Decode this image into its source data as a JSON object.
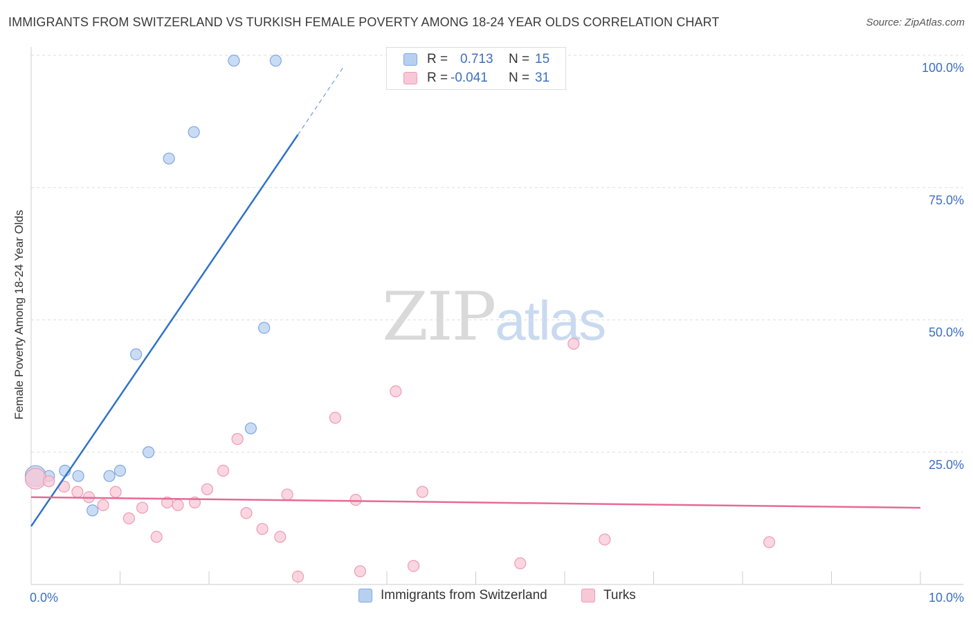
{
  "title": "IMMIGRANTS FROM SWITZERLAND VS TURKISH FEMALE POVERTY AMONG 18-24 YEAR OLDS CORRELATION CHART",
  "source": "Source: ZipAtlas.com",
  "watermark": {
    "zip": "ZIP",
    "atlas": "atlas"
  },
  "legend_top": [
    {
      "r_label": "R =",
      "r_value": "0.713",
      "n_label": "N =",
      "n_value": "15"
    },
    {
      "r_label": "R =",
      "r_value": "-0.041",
      "n_label": "N =",
      "n_value": "31"
    }
  ],
  "colors": {
    "blue_fill": "#b8d0f0",
    "blue_stroke": "#7da7e0",
    "blue_line": "#2f72c8",
    "pink_fill": "#f8c8d6",
    "pink_stroke": "#ee9ab5",
    "pink_line": "#e56a94",
    "grid": "#dddddd",
    "tick_text": "#3a6fc0"
  },
  "chart_data": {
    "type": "scatter",
    "title": "IMMIGRANTS FROM SWITZERLAND VS TURKISH FEMALE POVERTY AMONG 18-24 YEAR OLDS CORRELATION CHART",
    "xlabel": "",
    "ylabel": "Female Poverty Among 18-24 Year Olds",
    "xlim": [
      0,
      10
    ],
    "ylim": [
      0,
      100
    ],
    "x_tick_labels": [
      "0.0%",
      "10.0%"
    ],
    "y_ticks": [
      25,
      50,
      75,
      100
    ],
    "y_tick_labels": [
      "25.0%",
      "50.0%",
      "75.0%",
      "100.0%"
    ],
    "legend_position": "bottom",
    "series": [
      {
        "name": "Immigrants from Switzerland",
        "color": "blue",
        "points": [
          {
            "x": 0.05,
            "y": 20.5,
            "big": true
          },
          {
            "x": 0.2,
            "y": 20.5
          },
          {
            "x": 0.38,
            "y": 21.5
          },
          {
            "x": 0.53,
            "y": 20.5
          },
          {
            "x": 0.69,
            "y": 14.0
          },
          {
            "x": 0.88,
            "y": 20.5
          },
          {
            "x": 1.0,
            "y": 21.5
          },
          {
            "x": 1.18,
            "y": 43.5
          },
          {
            "x": 1.32,
            "y": 25.0
          },
          {
            "x": 1.55,
            "y": 80.5
          },
          {
            "x": 1.83,
            "y": 85.5
          },
          {
            "x": 2.28,
            "y": 99.0
          },
          {
            "x": 2.47,
            "y": 29.5
          },
          {
            "x": 2.62,
            "y": 48.5
          },
          {
            "x": 2.75,
            "y": 99.0
          }
        ],
        "trend": {
          "x1": 0.0,
          "y1": 11.0,
          "x2": 3.0,
          "y2": 85.0,
          "dash_to_x": 3.52,
          "dash_to_y": 98.0
        }
      },
      {
        "name": "Turks",
        "color": "pink",
        "points": [
          {
            "x": 0.05,
            "y": 20.0,
            "big": true
          },
          {
            "x": 0.2,
            "y": 19.5
          },
          {
            "x": 0.37,
            "y": 18.5
          },
          {
            "x": 0.52,
            "y": 17.5
          },
          {
            "x": 0.65,
            "y": 16.5
          },
          {
            "x": 0.81,
            "y": 15.0
          },
          {
            "x": 0.95,
            "y": 17.5
          },
          {
            "x": 1.1,
            "y": 12.5
          },
          {
            "x": 1.25,
            "y": 14.5
          },
          {
            "x": 1.41,
            "y": 9.0
          },
          {
            "x": 1.53,
            "y": 15.5
          },
          {
            "x": 1.65,
            "y": 15.0
          },
          {
            "x": 1.84,
            "y": 15.5
          },
          {
            "x": 1.98,
            "y": 18.0
          },
          {
            "x": 2.16,
            "y": 21.5
          },
          {
            "x": 2.32,
            "y": 27.5
          },
          {
            "x": 2.42,
            "y": 13.5
          },
          {
            "x": 2.6,
            "y": 10.5
          },
          {
            "x": 2.8,
            "y": 9.0
          },
          {
            "x": 2.88,
            "y": 17.0
          },
          {
            "x": 3.0,
            "y": 1.5
          },
          {
            "x": 3.42,
            "y": 31.5
          },
          {
            "x": 3.65,
            "y": 16.0
          },
          {
            "x": 3.7,
            "y": 2.5
          },
          {
            "x": 4.1,
            "y": 36.5
          },
          {
            "x": 4.3,
            "y": 3.5
          },
          {
            "x": 4.4,
            "y": 17.5
          },
          {
            "x": 5.5,
            "y": 4.0
          },
          {
            "x": 6.1,
            "y": 45.5
          },
          {
            "x": 6.45,
            "y": 8.5
          },
          {
            "x": 8.3,
            "y": 8.0
          }
        ],
        "trend": {
          "x1": 0.0,
          "y1": 16.5,
          "x2": 10.0,
          "y2": 14.5
        }
      }
    ]
  },
  "bottom_legend": [
    {
      "label": "Immigrants from Switzerland"
    },
    {
      "label": "Turks"
    }
  ]
}
